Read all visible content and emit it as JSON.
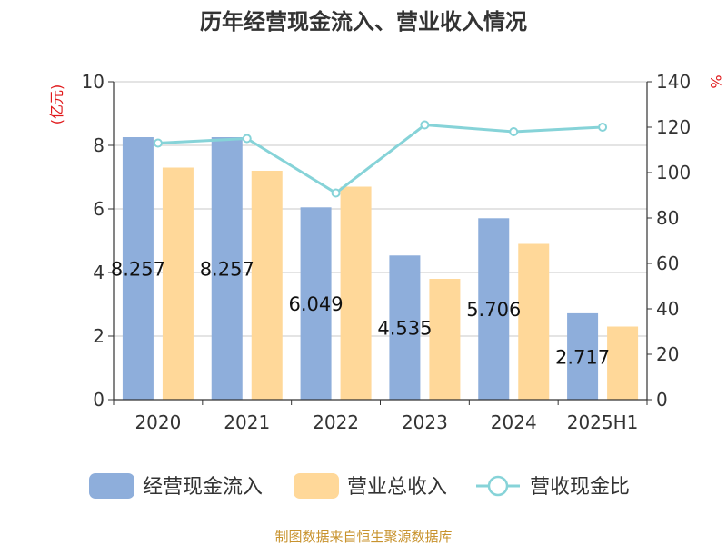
{
  "chart_data": {
    "type": "bar",
    "title": "历年经营现金流入、营业收入情况",
    "categories": [
      "2020",
      "2021",
      "2022",
      "2023",
      "2024",
      "2025H1"
    ],
    "series": [
      {
        "name": "经营现金流入",
        "type": "bar",
        "axis": "left",
        "color": "#8eaedb",
        "values": [
          8.257,
          8.257,
          6.049,
          4.535,
          5.706,
          2.717
        ]
      },
      {
        "name": "营业总收入",
        "type": "bar",
        "axis": "left",
        "color": "#ffd899",
        "values": [
          7.3,
          7.2,
          6.7,
          3.8,
          4.9,
          2.3
        ]
      },
      {
        "name": "营收现金比",
        "type": "line",
        "axis": "right",
        "color": "#86d3d8",
        "values": [
          113,
          115,
          91,
          121,
          118,
          120
        ]
      }
    ],
    "data_labels": [
      "8.257",
      "8.257",
      "6.049",
      "4.535",
      "5.706",
      "2.717"
    ],
    "y_left": {
      "label": "(亿元)",
      "ylim": [
        0,
        10
      ],
      "ticks": [
        0,
        2,
        4,
        6,
        8,
        10
      ]
    },
    "y_right": {
      "label": "%",
      "ylim": [
        0,
        140
      ],
      "ticks": [
        0,
        20,
        40,
        60,
        80,
        100,
        120,
        140
      ]
    },
    "grid": true,
    "legend_position": "bottom"
  },
  "source": "制图数据来自恒生聚源数据库"
}
